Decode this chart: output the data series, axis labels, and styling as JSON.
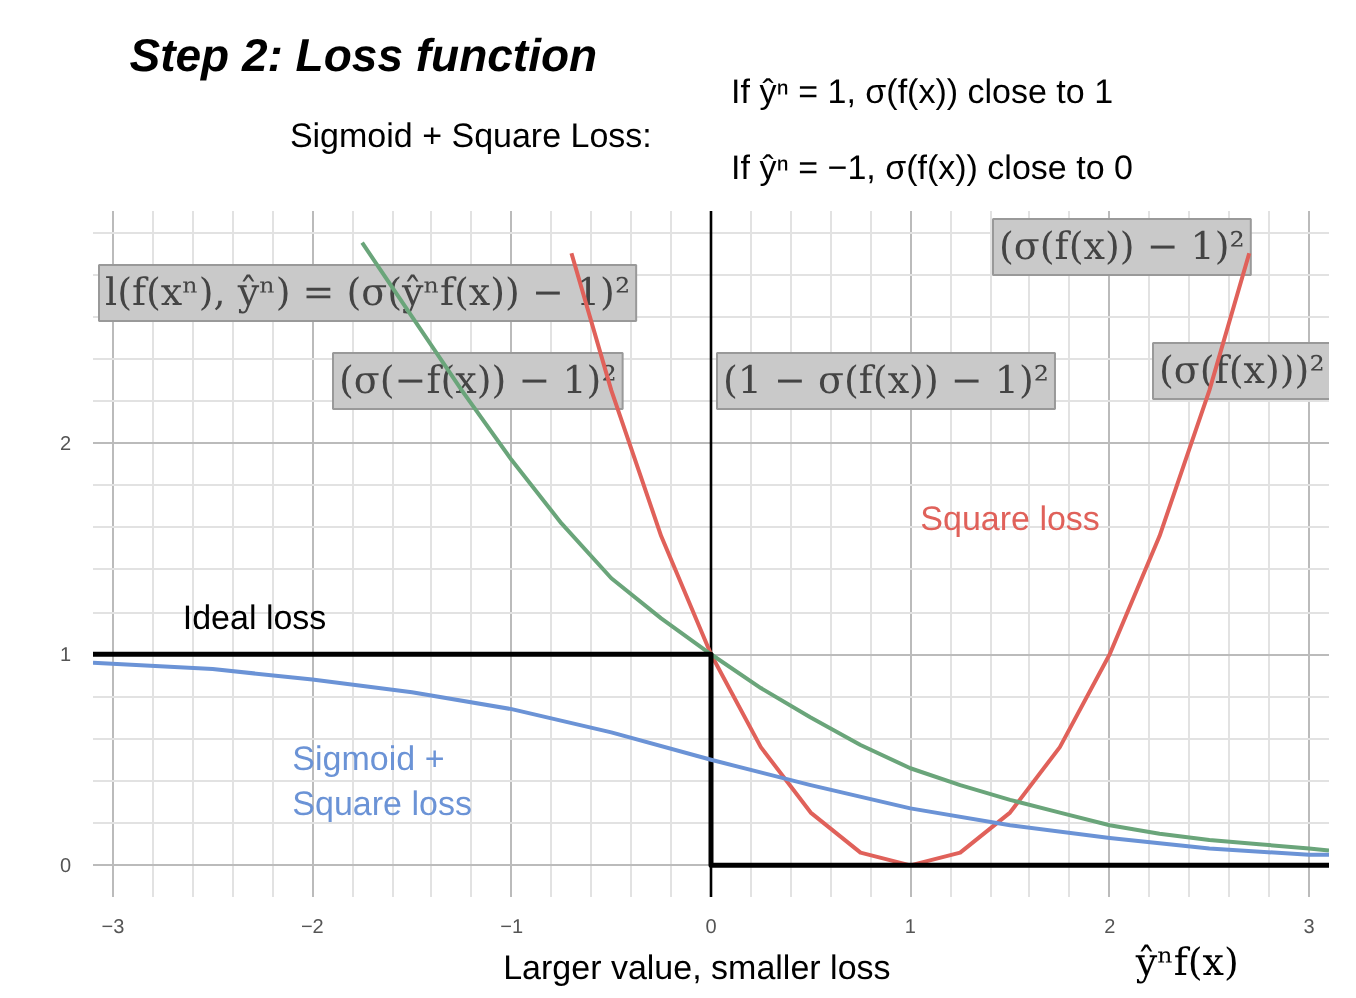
{
  "chart_data": {
    "type": "line",
    "title": "Step 2: Loss function",
    "xlabel": "ŷⁿf(x)",
    "annotations": [
      "Sigmoid + Square Loss:",
      "If ŷⁿ = 1,     σ(f(x)) close to 1",
      "If ŷⁿ = −1,   σ(f(x)) close to 0",
      "l(f(xⁿ), ŷⁿ) = (σ(ŷⁿf(x)) − 1)²",
      "(σ(−f(x)) − 1)²",
      "(1 − σ(f(x)) − 1)²",
      "(σ(f(x)))²",
      "(σ(f(x)) − 1)²",
      "Larger value, smaller loss"
    ],
    "xlim": [
      -3.1,
      3.1
    ],
    "ylim": [
      -0.15,
      3.1
    ],
    "xticks": [
      -3,
      -2,
      -1,
      0,
      1,
      2,
      3
    ],
    "yticks": [
      0,
      1,
      2
    ],
    "grid": true,
    "marker": "none",
    "line_style": "solid",
    "ref_lines": [
      {
        "axis": "x",
        "value": 0,
        "color": "#000000"
      }
    ],
    "series": [
      {
        "name": "Square loss",
        "color": "#e0615a",
        "x": [
          -0.7,
          -0.5,
          -0.25,
          0,
          0.25,
          0.5,
          0.75,
          1,
          1.25,
          1.5,
          1.75,
          2,
          2.25,
          2.5,
          2.7
        ],
        "values": [
          2.9,
          2.25,
          1.56,
          1.0,
          0.56,
          0.25,
          0.06,
          0,
          0.06,
          0.25,
          0.56,
          1.0,
          1.56,
          2.25,
          2.9
        ]
      },
      {
        "color": "#6aa57a",
        "x": [
          -1.75,
          -1.5,
          -1.25,
          -1,
          -0.75,
          -0.5,
          -0.25,
          0,
          0.25,
          0.5,
          0.75,
          1,
          1.25,
          1.5,
          1.75,
          2,
          2.25,
          2.5,
          2.75,
          3,
          3.1
        ],
        "values": [
          2.95,
          2.6,
          2.25,
          1.92,
          1.62,
          1.36,
          1.17,
          1.0,
          0.84,
          0.7,
          0.57,
          0.46,
          0.38,
          0.31,
          0.25,
          0.19,
          0.15,
          0.12,
          0.1,
          0.08,
          0.07
        ]
      },
      {
        "name": "Ideal loss",
        "color": "#000000",
        "x": [
          -3.1,
          0,
          0,
          3.1
        ],
        "values": [
          1,
          1,
          0,
          0
        ]
      },
      {
        "name": "Sigmoid +\nSquare loss",
        "color": "#6b93d6",
        "x": [
          -3.1,
          -2.5,
          -2,
          -1.5,
          -1,
          -0.5,
          0,
          0.5,
          1,
          1.5,
          2,
          2.5,
          3,
          3.1
        ],
        "values": [
          0.96,
          0.93,
          0.88,
          0.82,
          0.74,
          0.63,
          0.5,
          0.38,
          0.27,
          0.19,
          0.13,
          0.08,
          0.05,
          0.05
        ]
      }
    ]
  }
}
